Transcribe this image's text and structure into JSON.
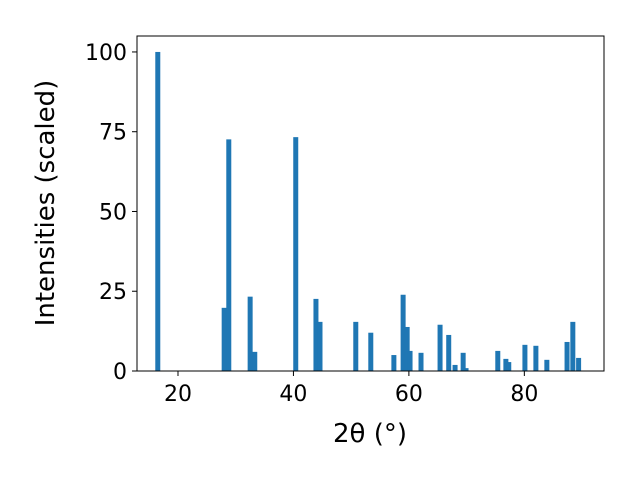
{
  "chart_data": {
    "type": "bar",
    "xlabel": "2θ (°)",
    "ylabel": "Intensities (scaled)",
    "x": [
      16.5,
      28.0,
      28.8,
      32.5,
      33.3,
      40.4,
      43.9,
      44.6,
      50.8,
      53.4,
      57.4,
      59.0,
      59.7,
      60.2,
      62.1,
      65.4,
      66.9,
      68.0,
      69.4,
      69.9,
      75.4,
      76.8,
      77.3,
      80.1,
      82.0,
      83.9,
      87.4,
      88.4,
      89.4
    ],
    "values": [
      100,
      19.8,
      72.6,
      23.3,
      6.0,
      73.3,
      22.6,
      15.4,
      15.4,
      12.0,
      5.0,
      23.9,
      13.8,
      6.3,
      5.7,
      14.5,
      11.3,
      1.9,
      5.7,
      0.9,
      6.3,
      3.8,
      2.8,
      8.2,
      7.9,
      3.5,
      9.1,
      15.4,
      4.1
    ],
    "color": "#1f77b4",
    "xlim": [
      12.9,
      93.8
    ],
    "xticks": [
      20,
      40,
      60,
      80
    ],
    "ylim": [
      0,
      105
    ],
    "yticks": [
      0,
      25,
      50,
      75,
      100
    ]
  }
}
